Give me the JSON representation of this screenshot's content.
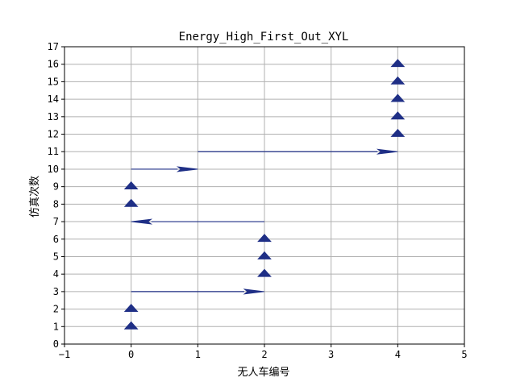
{
  "chart_data": {
    "type": "quiver",
    "title": "Energy_High_First_Out_XYL",
    "xlabel": "无人车编号",
    "ylabel": "仿真次数",
    "xlim": [
      -1,
      5
    ],
    "ylim": [
      0,
      17
    ],
    "xticks": [
      -1,
      0,
      1,
      2,
      3,
      4,
      5
    ],
    "yticks": [
      0,
      1,
      2,
      3,
      4,
      5,
      6,
      7,
      8,
      9,
      10,
      11,
      12,
      13,
      14,
      15,
      16,
      17
    ],
    "grid": true,
    "arrow_color": "#1f2f86",
    "arrows": [
      {
        "x": 0,
        "y": 1,
        "dx": 0,
        "dy": 0
      },
      {
        "x": 0,
        "y": 2,
        "dx": 0,
        "dy": 0
      },
      {
        "x": 0,
        "y": 3,
        "dx": 2,
        "dy": 0
      },
      {
        "x": 2,
        "y": 4,
        "dx": 0,
        "dy": 0
      },
      {
        "x": 2,
        "y": 5,
        "dx": 0,
        "dy": 0
      },
      {
        "x": 2,
        "y": 6,
        "dx": 0,
        "dy": 0
      },
      {
        "x": 2,
        "y": 7,
        "dx": -2,
        "dy": 0
      },
      {
        "x": 0,
        "y": 8,
        "dx": 0,
        "dy": 0
      },
      {
        "x": 0,
        "y": 9,
        "dx": 0,
        "dy": 0
      },
      {
        "x": 0,
        "y": 10,
        "dx": 1,
        "dy": 0
      },
      {
        "x": 1,
        "y": 11,
        "dx": 3,
        "dy": 0
      },
      {
        "x": 4,
        "y": 12,
        "dx": 0,
        "dy": 0
      },
      {
        "x": 4,
        "y": 13,
        "dx": 0,
        "dy": 0
      },
      {
        "x": 4,
        "y": 14,
        "dx": 0,
        "dy": 0
      },
      {
        "x": 4,
        "y": 15,
        "dx": 0,
        "dy": 0
      },
      {
        "x": 4,
        "y": 16,
        "dx": 0,
        "dy": 0
      }
    ]
  }
}
